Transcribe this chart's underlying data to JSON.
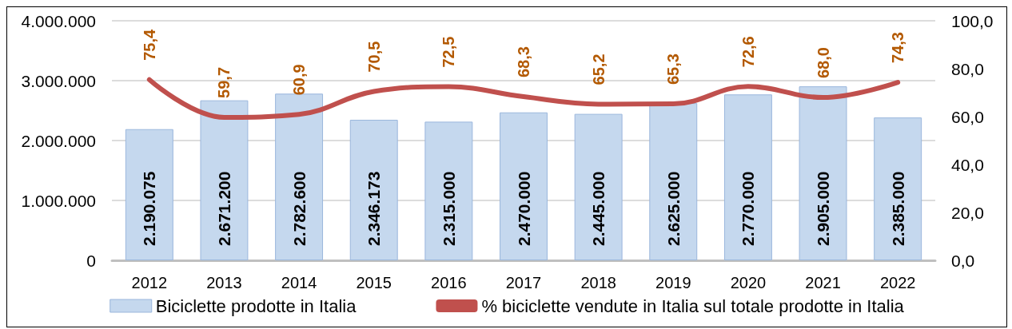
{
  "chart_data": {
    "type": "bar",
    "categories": [
      "2012",
      "2013",
      "2014",
      "2015",
      "2016",
      "2017",
      "2018",
      "2019",
      "2020",
      "2021",
      "2022"
    ],
    "series": [
      {
        "name": "Biciclette prodotte in Italia",
        "color": "#c5d8ee",
        "values": [
          2190075,
          2671200,
          2782600,
          2346173,
          2315000,
          2470000,
          2445000,
          2625000,
          2770000,
          2905000,
          2385000
        ],
        "value_labels": [
          "2.190.075",
          "2.671.200",
          "2.782.600",
          "2.346.173",
          "2.315.000",
          "2.470.000",
          "2.445.000",
          "2.625.000",
          "2.770.000",
          "2.905.000",
          "2.385.000"
        ]
      },
      {
        "name": "% biciclette vendute in Italia sul totale prodotte in Italia",
        "type": "line",
        "axis": "y2",
        "color": "#c0504d",
        "values": [
          75.4,
          59.7,
          60.9,
          70.5,
          72.5,
          68.3,
          65.2,
          65.3,
          72.6,
          68.0,
          74.3
        ],
        "value_labels": [
          "75,4",
          "59,7",
          "60,9",
          "70,5",
          "72,5",
          "68,3",
          "65,2",
          "65,3",
          "72,6",
          "68,0",
          "74,3"
        ]
      }
    ],
    "ylim": [
      0,
      4000000
    ],
    "yticks": [
      0,
      {
        "value": 1000000,
        "label": "1.000.000"
      },
      {
        "value": 2000000,
        "label": "2.000.000"
      },
      {
        "value": 3000000,
        "label": "3.000.000"
      },
      {
        "value": 4000000,
        "label": "4.000.000"
      }
    ],
    "y2lim": [
      0,
      100
    ],
    "y2ticks": [
      {
        "value": 0,
        "label": "0,0"
      },
      {
        "value": 20,
        "label": "20,0"
      },
      {
        "value": 40,
        "label": "40,0"
      },
      {
        "value": 60,
        "label": "60,0"
      },
      {
        "value": 80,
        "label": "80,0"
      },
      {
        "value": 100,
        "label": "100,0"
      }
    ],
    "grid": "y",
    "legend": "bottom",
    "marker": "none"
  }
}
